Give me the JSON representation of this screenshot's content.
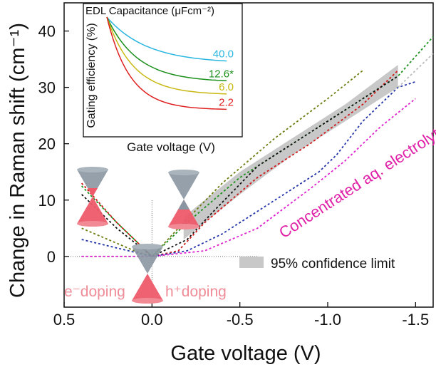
{
  "chart_data": [
    {
      "type": "line",
      "xlabel": "Gate voltage (V)",
      "ylabel": "Change in Raman shift (cm⁻¹)",
      "xlim": [
        0.5,
        -1.6
      ],
      "ylim": [
        -9,
        45
      ],
      "x_ticks": [
        "0.5",
        "0.0",
        "-0.5",
        "-1.0",
        "-1.5"
      ],
      "x_tick_values": [
        0.5,
        0.0,
        -0.5,
        -1.0,
        -1.5
      ],
      "y_ticks": [
        "0",
        "10",
        "20",
        "30",
        "40"
      ],
      "y_tick_values": [
        0,
        10,
        20,
        30,
        40
      ],
      "series": [
        {
          "color": "#6b7d0e",
          "points": [
            [
              0.4,
              5
            ],
            [
              0.25,
              3
            ],
            [
              0.1,
              1
            ],
            [
              0,
              0
            ],
            [
              -0.15,
              5
            ],
            [
              -0.4,
              13
            ],
            [
              -0.7,
              21
            ],
            [
              -1.0,
              28
            ],
            [
              -1.2,
              33
            ]
          ]
        },
        {
          "color": "#1a8f1a",
          "points": [
            [
              0.4,
              12.5
            ],
            [
              0.2,
              6
            ],
            [
              0,
              0
            ],
            [
              -0.2,
              6
            ],
            [
              -0.5,
              14
            ],
            [
              -0.8,
              20
            ],
            [
              -1.1,
              26
            ],
            [
              -1.4,
              32
            ],
            [
              -1.6,
              39
            ]
          ]
        },
        {
          "color": "#d01818",
          "points": [
            [
              0.4,
              13
            ],
            [
              0.2,
              6
            ],
            [
              0,
              0
            ],
            [
              -0.15,
              1
            ],
            [
              -0.3,
              6
            ],
            [
              -0.6,
              14
            ],
            [
              -0.9,
              20
            ],
            [
              -1.2,
              27
            ],
            [
              -1.4,
              33
            ]
          ]
        },
        {
          "color": "#111111",
          "points": [
            [
              0.4,
              11
            ],
            [
              0.2,
              5
            ],
            [
              0,
              0
            ],
            [
              -0.2,
              3
            ],
            [
              -0.35,
              8
            ],
            [
              -0.6,
              16
            ],
            [
              -0.9,
              22
            ],
            [
              -1.2,
              28
            ],
            [
              -1.4,
              32
            ]
          ]
        },
        {
          "color": "#2233aa",
          "points": [
            [
              0.4,
              3
            ],
            [
              0.2,
              1.5
            ],
            [
              0,
              0
            ],
            [
              -0.2,
              1
            ],
            [
              -0.4,
              4
            ],
            [
              -0.7,
              10
            ],
            [
              -0.95,
              15
            ],
            [
              -1.05,
              18
            ],
            [
              -1.2,
              24
            ],
            [
              -1.4,
              30
            ],
            [
              -1.5,
              31
            ]
          ]
        },
        {
          "color": "#e020d0",
          "points": [
            [
              0.4,
              0
            ],
            [
              0.2,
              0
            ],
            [
              0,
              0
            ],
            [
              -0.3,
              1
            ],
            [
              -0.6,
              5
            ],
            [
              -0.9,
              12
            ],
            [
              -1.1,
              17
            ],
            [
              -1.3,
              23
            ],
            [
              -1.5,
              28
            ]
          ]
        },
        {
          "color": "#bbbbbb",
          "points": [
            [
              -1.4,
              30
            ],
            [
              -1.6,
              36
            ]
          ]
        }
      ],
      "confidence_band": {
        "label": "95% confidence limit",
        "lower": [
          [
            -0.18,
            3
          ],
          [
            -0.5,
            11
          ],
          [
            -0.8,
            18
          ],
          [
            -1.1,
            24
          ],
          [
            -1.4,
            30
          ]
        ],
        "upper": [
          [
            -0.18,
            7
          ],
          [
            -0.5,
            15
          ],
          [
            -0.8,
            21
          ],
          [
            -1.1,
            27
          ],
          [
            -1.4,
            34
          ]
        ]
      },
      "annotations": {
        "electrolytes": "Concentrated aq. electrolytes",
        "e_doping": "e⁻doping",
        "h_doping": "h⁺doping"
      },
      "colors": {
        "pink_label": "#e020a8",
        "doping_label": "#f08c98",
        "cone_grey": "#8a96a2",
        "cone_red": "#ee5a6a"
      }
    },
    {
      "type": "line",
      "title": "EDL Capacitance (μFcm⁻²)",
      "xlabel": "Gate voltage (V)",
      "ylabel": "Gating efficiency (%)",
      "series": [
        {
          "name": "40.0",
          "color": "#29b6e0",
          "values": [
            1.0,
            0.74,
            0.6
          ]
        },
        {
          "name": "12.6*",
          "color": "#1a8f1a",
          "values": [
            1.0,
            0.55,
            0.42
          ]
        },
        {
          "name": "6.0",
          "color": "#c8b810",
          "values": [
            1.0,
            0.42,
            0.3
          ]
        },
        {
          "name": "2.2",
          "color": "#e02020",
          "values": [
            1.0,
            0.3,
            0.16
          ]
        }
      ]
    }
  ]
}
